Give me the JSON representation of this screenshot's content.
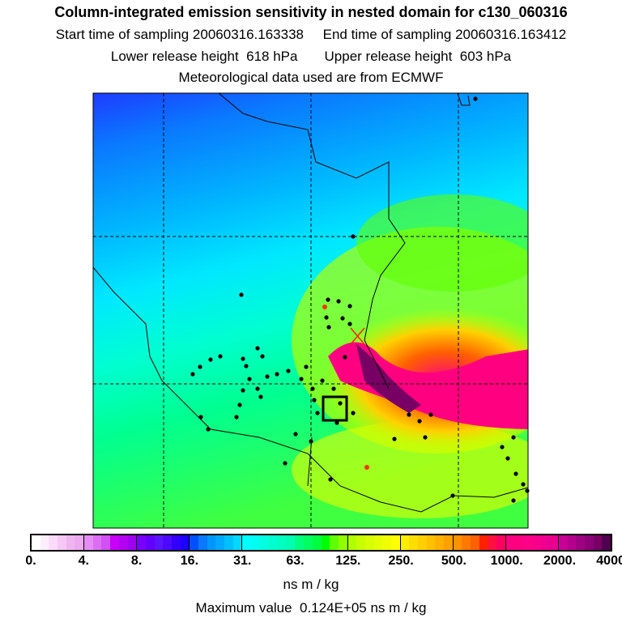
{
  "header": {
    "title": "Column-integrated emission sensitivity in nested domain for c130_060316",
    "line2": "Start time of sampling 20060316.163338     End time of sampling 20060316.163412",
    "line3": "Lower release height  618 hPa       Upper release height  603 hPa",
    "line4": "Meteorological data used are from ECMWF"
  },
  "colorbar": {
    "tick_labels": [
      "0.",
      "4.",
      "8.",
      "16.",
      "31.",
      "63.",
      "125.",
      "250.",
      "500.",
      "1000.",
      "2000.",
      "4000."
    ],
    "units": "ns m / kg",
    "segments": [
      [
        "#ffffff",
        "#fdeefd",
        "#fadcfa",
        "#f5c8f5",
        "#f0b4f0",
        "#ebaaf0"
      ],
      [
        "#e68cf5",
        "#dc6ef5",
        "#d250f5",
        "#c800fa",
        "#b400f0",
        "#a000f0"
      ],
      [
        "#7800ff",
        "#6400ff",
        "#5a14ff",
        "#4b0aff",
        "#3200ff",
        "#1e00ff"
      ],
      [
        "#0050ff",
        "#0a78ff",
        "#0096ff",
        "#00a8ff",
        "#00c0ff",
        "#00d8ff"
      ],
      [
        "#00ffff",
        "#00fff0",
        "#00ffe0",
        "#00ffd0",
        "#00ffc0",
        "#00ffb0"
      ],
      [
        "#00ff80",
        "#00ff60",
        "#00ff40",
        "#00ff00",
        "#60ff00",
        "#90ff00"
      ],
      [
        "#b0ff00",
        "#c8ff00",
        "#d8ff00",
        "#e6ff00",
        "#f0ff00",
        "#ffff00"
      ],
      [
        "#ffee00",
        "#ffdd00",
        "#ffd000",
        "#ffc000",
        "#ffb000",
        "#ffa000"
      ],
      [
        "#ff9000",
        "#ff7800",
        "#ff6000",
        "#ff2000",
        "#ff1040",
        "#ff0060"
      ],
      [
        "#ff0080",
        "#ff0080",
        "#ff0088",
        "#f8008c",
        "#f00090",
        "#e80090"
      ],
      [
        "#c80096",
        "#b4008c",
        "#a00082",
        "#8c0078",
        "#780064",
        "#500050"
      ]
    ],
    "max_value": "Maximum value  0.124E+05 ns m / kg"
  }
}
